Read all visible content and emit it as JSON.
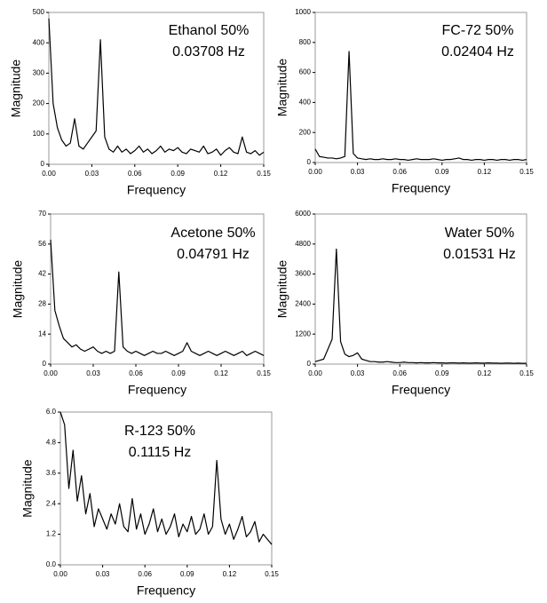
{
  "chart_data": {
    "charts": [
      {
        "type": "line",
        "title": "Ethanol 50%",
        "subtitle": "0.03708 Hz",
        "xlabel": "Frequency",
        "ylabel": "Magnitude",
        "color": "#000000",
        "x": [
          0,
          0.003,
          0.006,
          0.009,
          0.012,
          0.015,
          0.018,
          0.021,
          0.024,
          0.027,
          0.03,
          0.033,
          0.036,
          0.039,
          0.042,
          0.045,
          0.048,
          0.051,
          0.054,
          0.057,
          0.06,
          0.063,
          0.066,
          0.069,
          0.072,
          0.075,
          0.078,
          0.081,
          0.084,
          0.087,
          0.09,
          0.093,
          0.096,
          0.099,
          0.102,
          0.105,
          0.108,
          0.111,
          0.114,
          0.117,
          0.12,
          0.123,
          0.126,
          0.129,
          0.132,
          0.135,
          0.138,
          0.141,
          0.144,
          0.147,
          0.15
        ],
        "values": [
          480,
          200,
          120,
          80,
          60,
          70,
          150,
          60,
          50,
          70,
          90,
          110,
          410,
          90,
          50,
          40,
          60,
          40,
          50,
          35,
          45,
          60,
          40,
          50,
          35,
          45,
          60,
          40,
          50,
          45,
          55,
          40,
          35,
          50,
          45,
          40,
          60,
          35,
          40,
          50,
          30,
          45,
          55,
          40,
          35,
          90,
          40,
          35,
          45,
          30,
          40
        ],
        "xlim": [
          0,
          0.15
        ],
        "ylim": [
          0,
          500
        ],
        "xticks": [
          {
            "value": 0,
            "label": "0.00"
          },
          0.03,
          0.06,
          0.09,
          0.12,
          0.15
        ],
        "yticks": [
          0,
          100,
          200,
          300,
          400,
          500
        ]
      },
      {
        "type": "line",
        "title": "FC-72 50%",
        "subtitle": "0.02404 Hz",
        "xlabel": "Frequency",
        "ylabel": "Magnitude",
        "color": "#000000",
        "x": [
          0,
          0.003,
          0.006,
          0.009,
          0.012,
          0.015,
          0.018,
          0.021,
          0.024,
          0.027,
          0.03,
          0.033,
          0.036,
          0.039,
          0.042,
          0.045,
          0.048,
          0.051,
          0.054,
          0.057,
          0.06,
          0.063,
          0.066,
          0.069,
          0.072,
          0.075,
          0.078,
          0.081,
          0.084,
          0.087,
          0.09,
          0.093,
          0.096,
          0.099,
          0.102,
          0.105,
          0.108,
          0.111,
          0.114,
          0.117,
          0.12,
          0.123,
          0.126,
          0.129,
          0.132,
          0.135,
          0.138,
          0.141,
          0.144,
          0.147,
          0.15
        ],
        "values": [
          90,
          40,
          35,
          30,
          30,
          25,
          30,
          40,
          740,
          60,
          30,
          25,
          20,
          25,
          20,
          20,
          25,
          20,
          20,
          25,
          20,
          20,
          15,
          20,
          25,
          20,
          20,
          20,
          25,
          20,
          15,
          20,
          20,
          25,
          30,
          20,
          20,
          15,
          20,
          20,
          15,
          20,
          20,
          15,
          20,
          20,
          15,
          20,
          20,
          15,
          20
        ],
        "xlim": [
          0,
          0.15
        ],
        "ylim": [
          0,
          1000
        ],
        "xticks": [
          {
            "value": 0,
            "label": "0.00"
          },
          0.03,
          0.06,
          0.09,
          0.12,
          0.15
        ],
        "yticks": [
          0,
          200,
          400,
          600,
          800,
          1000
        ]
      },
      {
        "type": "line",
        "title": "Acetone 50%",
        "subtitle": "0.04791 Hz",
        "xlabel": "Frequency",
        "ylabel": "Magnitude",
        "color": "#000000",
        "x": [
          0,
          0.003,
          0.006,
          0.009,
          0.012,
          0.015,
          0.018,
          0.021,
          0.024,
          0.027,
          0.03,
          0.033,
          0.036,
          0.039,
          0.042,
          0.045,
          0.048,
          0.051,
          0.054,
          0.057,
          0.06,
          0.063,
          0.066,
          0.069,
          0.072,
          0.075,
          0.078,
          0.081,
          0.084,
          0.087,
          0.09,
          0.093,
          0.096,
          0.099,
          0.102,
          0.105,
          0.108,
          0.111,
          0.114,
          0.117,
          0.12,
          0.123,
          0.126,
          0.129,
          0.132,
          0.135,
          0.138,
          0.141,
          0.144,
          0.147,
          0.15
        ],
        "values": [
          58,
          25,
          18,
          12,
          10,
          8,
          9,
          7,
          6,
          7,
          8,
          6,
          5,
          6,
          5,
          6,
          43,
          8,
          6,
          5,
          6,
          5,
          4,
          5,
          6,
          5,
          5,
          6,
          5,
          4,
          5,
          6,
          10,
          6,
          5,
          4,
          5,
          6,
          5,
          4,
          5,
          6,
          5,
          4,
          5,
          6,
          4,
          5,
          6,
          5,
          4
        ],
        "xlim": [
          0,
          0.15
        ],
        "ylim": [
          0,
          70
        ],
        "xticks": [
          {
            "value": 0,
            "label": "0.00"
          },
          0.03,
          0.06,
          0.09,
          0.12,
          0.15
        ],
        "yticks": [
          0,
          14,
          28,
          42,
          56,
          70
        ]
      },
      {
        "type": "line",
        "title": "Water 50%",
        "subtitle": "0.01531 Hz",
        "xlabel": "Frequency",
        "ylabel": "Magnitude",
        "color": "#000000",
        "x": [
          0,
          0.003,
          0.006,
          0.009,
          0.012,
          0.015,
          0.018,
          0.021,
          0.024,
          0.027,
          0.03,
          0.033,
          0.036,
          0.039,
          0.042,
          0.045,
          0.048,
          0.051,
          0.054,
          0.057,
          0.06,
          0.063,
          0.066,
          0.069,
          0.072,
          0.075,
          0.078,
          0.081,
          0.084,
          0.087,
          0.09,
          0.093,
          0.096,
          0.099,
          0.102,
          0.105,
          0.108,
          0.111,
          0.114,
          0.117,
          0.12,
          0.123,
          0.126,
          0.129,
          0.132,
          0.135,
          0.138,
          0.141,
          0.144,
          0.147,
          0.15
        ],
        "values": [
          100,
          150,
          200,
          600,
          1000,
          4600,
          900,
          400,
          300,
          350,
          450,
          200,
          150,
          100,
          100,
          80,
          80,
          100,
          80,
          60,
          60,
          80,
          60,
          60,
          50,
          60,
          50,
          50,
          60,
          50,
          50,
          40,
          50,
          50,
          40,
          50,
          40,
          40,
          50,
          40,
          40,
          50,
          40,
          40,
          30,
          40,
          40,
          30,
          40,
          30,
          30
        ],
        "xlim": [
          0,
          0.15
        ],
        "ylim": [
          0,
          6000
        ],
        "xticks": [
          {
            "value": 0,
            "label": "0.00"
          },
          0.03,
          0.06,
          0.09,
          0.12,
          0.15
        ],
        "yticks": [
          0,
          1200,
          2400,
          3600,
          4800,
          6000
        ]
      },
      {
        "type": "line",
        "title": "R-123 50%",
        "subtitle": "0.1115 Hz",
        "xlabel": "Frequency",
        "ylabel": "Magnitude",
        "color": "#000000",
        "x": [
          0,
          0.003,
          0.006,
          0.009,
          0.012,
          0.015,
          0.018,
          0.021,
          0.024,
          0.027,
          0.03,
          0.033,
          0.036,
          0.039,
          0.042,
          0.045,
          0.048,
          0.051,
          0.054,
          0.057,
          0.06,
          0.063,
          0.066,
          0.069,
          0.072,
          0.075,
          0.078,
          0.081,
          0.084,
          0.087,
          0.09,
          0.093,
          0.096,
          0.099,
          0.102,
          0.105,
          0.108,
          0.111,
          0.114,
          0.117,
          0.12,
          0.123,
          0.126,
          0.129,
          0.132,
          0.135,
          0.138,
          0.141,
          0.144,
          0.147,
          0.15
        ],
        "values": [
          6.0,
          5.5,
          3.0,
          4.5,
          2.5,
          3.5,
          2.0,
          2.8,
          1.5,
          2.2,
          1.8,
          1.4,
          2.0,
          1.6,
          2.4,
          1.5,
          1.3,
          2.6,
          1.4,
          2.0,
          1.2,
          1.6,
          2.2,
          1.3,
          1.8,
          1.2,
          1.5,
          2.0,
          1.1,
          1.6,
          1.3,
          1.9,
          1.2,
          1.4,
          2.0,
          1.2,
          1.5,
          4.1,
          1.8,
          1.2,
          1.6,
          1.0,
          1.4,
          1.9,
          1.1,
          1.3,
          1.7,
          0.9,
          1.2,
          1.0,
          0.8
        ],
        "xlim": [
          0,
          0.15
        ],
        "ylim": [
          0,
          6
        ],
        "xticks": [
          {
            "value": 0,
            "label": "0.00"
          },
          0.03,
          0.06,
          0.09,
          0.12,
          0.15
        ],
        "yticks": [
          {
            "value": 0,
            "label": "0.0"
          },
          1.2,
          2.4,
          3.6,
          4.8,
          {
            "value": 6,
            "label": "6.0"
          }
        ]
      }
    ]
  }
}
